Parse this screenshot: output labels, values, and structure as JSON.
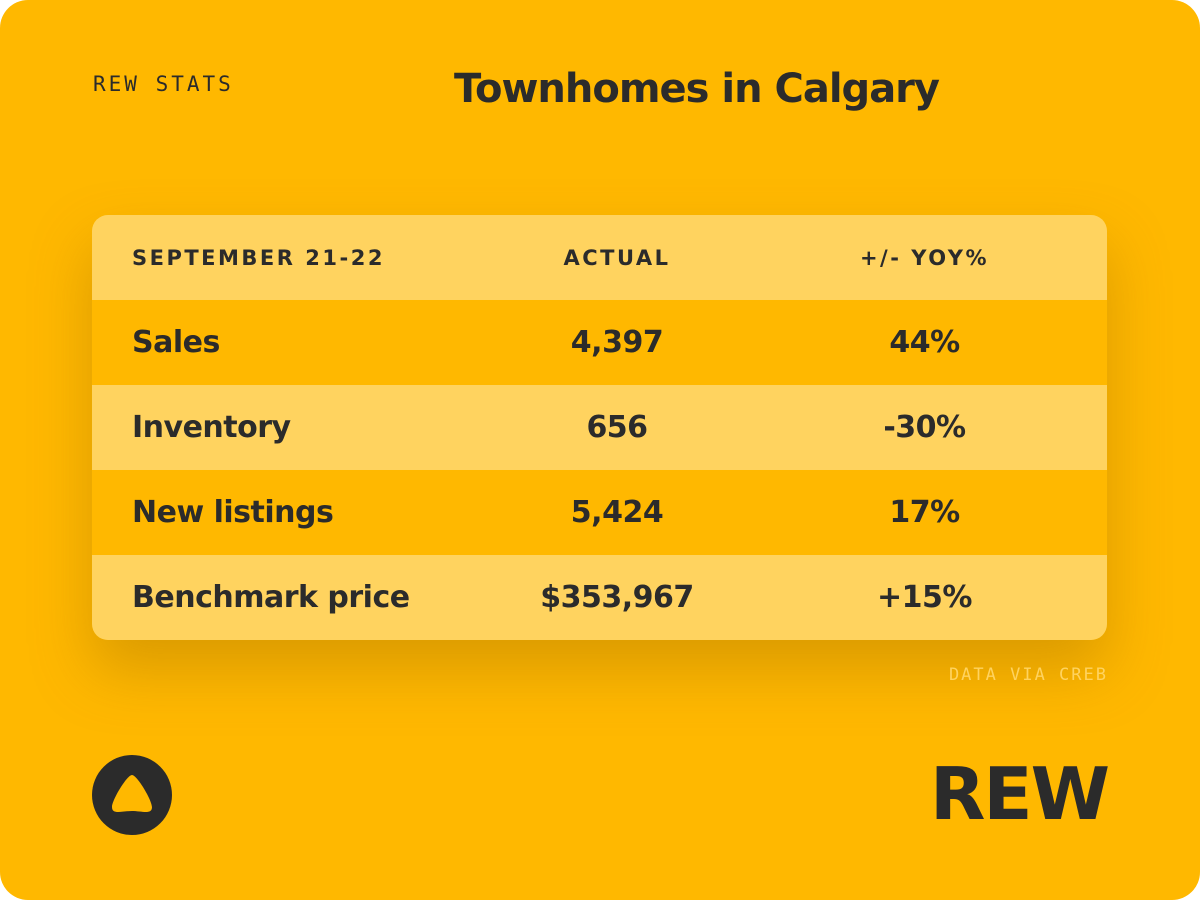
{
  "header": {
    "brand": "REW STATS",
    "title": "Townhomes in Calgary"
  },
  "table": {
    "columns": [
      "SEPTEMBER 21-22",
      "ACTUAL",
      "+/- YOY%"
    ],
    "rows": [
      [
        "Sales",
        "4,397",
        "44%"
      ],
      [
        "Inventory",
        "656",
        "-30%"
      ],
      [
        "New listings",
        "5,424",
        "17%"
      ],
      [
        "Benchmark price",
        "$353,967",
        "+15%"
      ]
    ]
  },
  "footer": {
    "source": "DATA VIA CREB",
    "wordmark": "REW"
  }
}
